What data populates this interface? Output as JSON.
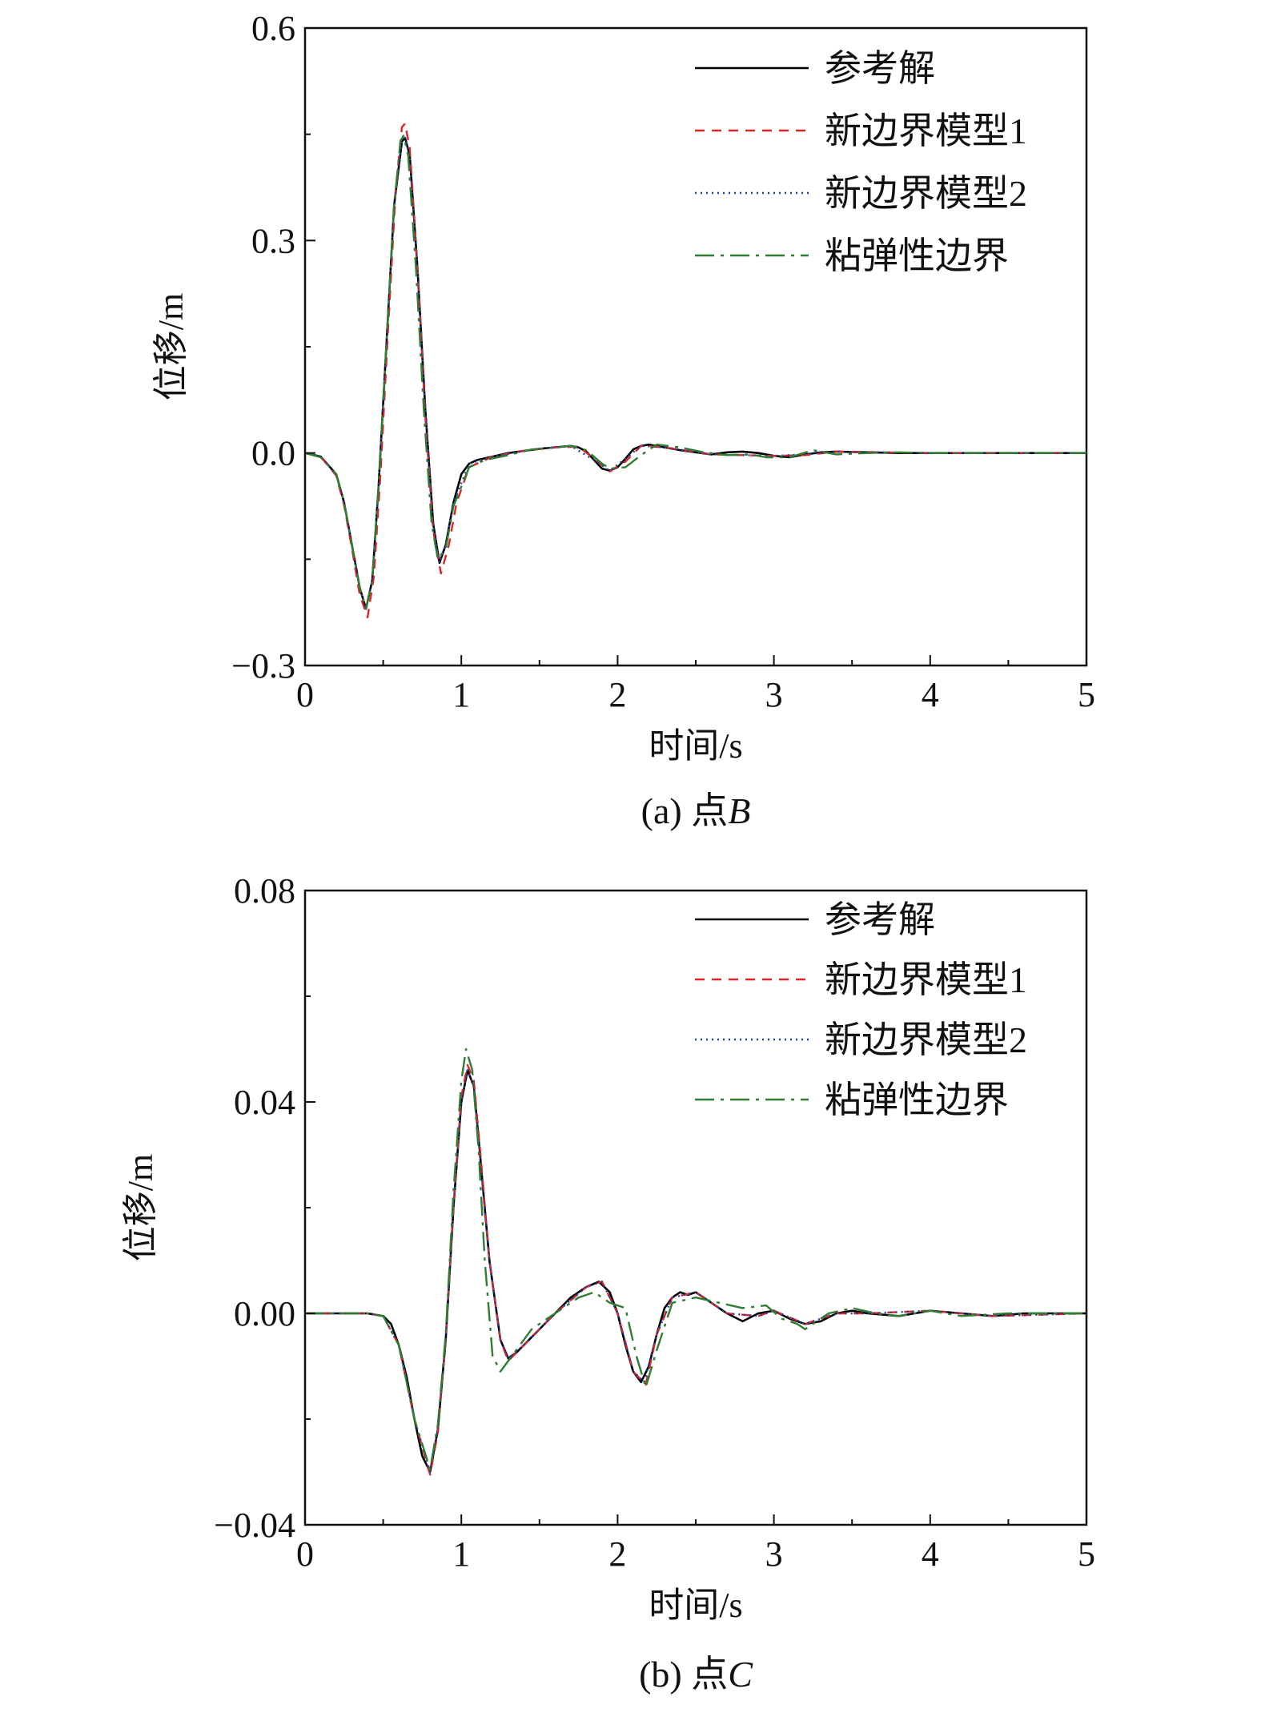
{
  "chart_data": [
    {
      "type": "line",
      "panel_caption": "(a) 点",
      "panel_point": "B",
      "xlabel": "时间/s",
      "ylabel": "位移/m",
      "xlim": [
        0,
        5
      ],
      "ylim": [
        -0.3,
        0.6
      ],
      "xticks": [
        0,
        1,
        2,
        3,
        4,
        5
      ],
      "yticks": [
        -0.3,
        0.0,
        0.3,
        0.6
      ],
      "ytick_labels": [
        "−0.3",
        "0.0",
        "0.3",
        "0.6"
      ],
      "grid": false,
      "legend_position": "top-right",
      "series": [
        {
          "name": "参考解",
          "color": "#000000",
          "dash": "solid",
          "x": [
            0,
            0.1,
            0.2,
            0.25,
            0.3,
            0.35,
            0.39,
            0.43,
            0.47,
            0.52,
            0.57,
            0.62,
            0.64,
            0.67,
            0.72,
            0.77,
            0.82,
            0.86,
            0.9,
            0.95,
            1.0,
            1.05,
            1.1,
            1.2,
            1.3,
            1.4,
            1.5,
            1.6,
            1.7,
            1.75,
            1.8,
            1.85,
            1.9,
            1.95,
            2.0,
            2.05,
            2.1,
            2.15,
            2.2,
            2.3,
            2.4,
            2.5,
            2.6,
            2.7,
            2.8,
            2.9,
            3.0,
            3.1,
            3.2,
            3.3,
            3.4,
            3.6,
            3.8,
            4.0,
            4.5,
            5.0
          ],
          "y": [
            0,
            -0.005,
            -0.03,
            -0.07,
            -0.13,
            -0.19,
            -0.22,
            -0.18,
            -0.05,
            0.15,
            0.35,
            0.44,
            0.445,
            0.42,
            0.26,
            0.06,
            -0.1,
            -0.155,
            -0.13,
            -0.07,
            -0.03,
            -0.015,
            -0.01,
            -0.005,
            0,
            0.003,
            0.006,
            0.008,
            0.01,
            0.008,
            0.002,
            -0.01,
            -0.022,
            -0.025,
            -0.02,
            -0.008,
            0.005,
            0.01,
            0.012,
            0.008,
            0.004,
            0.001,
            -0.002,
            0.001,
            0.002,
            0,
            -0.004,
            -0.006,
            -0.002,
            0.001,
            0.002,
            0.001,
            0,
            0,
            0,
            0
          ]
        },
        {
          "name": "新边界模型1",
          "color": "#d62728",
          "dash": "dashed",
          "x": [
            0,
            0.1,
            0.2,
            0.25,
            0.3,
            0.35,
            0.4,
            0.44,
            0.48,
            0.53,
            0.58,
            0.62,
            0.64,
            0.67,
            0.72,
            0.77,
            0.82,
            0.87,
            0.92,
            0.97,
            1.05,
            1.2,
            1.4,
            1.6,
            1.75,
            1.85,
            1.95,
            2.05,
            2.15,
            2.3,
            2.6,
            3.0,
            3.2,
            3.4,
            4.0,
            5.0
          ],
          "y": [
            0,
            -0.005,
            -0.032,
            -0.074,
            -0.135,
            -0.2,
            -0.232,
            -0.175,
            -0.04,
            0.17,
            0.37,
            0.46,
            0.465,
            0.43,
            0.26,
            0.05,
            -0.11,
            -0.17,
            -0.13,
            -0.07,
            -0.02,
            -0.005,
            0.003,
            0.008,
            0.009,
            -0.008,
            -0.026,
            -0.012,
            0.01,
            0.008,
            -0.002,
            -0.004,
            -0.003,
            0.002,
            0,
            0
          ]
        },
        {
          "name": "新边界模型2",
          "color": "#1f3fa8",
          "dash": "dotted",
          "x": [
            0,
            0.1,
            0.2,
            0.25,
            0.3,
            0.35,
            0.39,
            0.43,
            0.47,
            0.52,
            0.57,
            0.62,
            0.64,
            0.67,
            0.72,
            0.77,
            0.82,
            0.86,
            0.9,
            0.95,
            1.05,
            1.2,
            1.4,
            1.6,
            1.7,
            1.85,
            1.95,
            2.05,
            2.15,
            2.3,
            2.6,
            3.0,
            3.2,
            3.4,
            4.0,
            5.0
          ],
          "y": [
            0,
            -0.005,
            -0.03,
            -0.07,
            -0.13,
            -0.19,
            -0.22,
            -0.18,
            -0.05,
            0.15,
            0.35,
            0.44,
            0.445,
            0.42,
            0.26,
            0.06,
            -0.1,
            -0.155,
            -0.13,
            -0.07,
            -0.015,
            -0.005,
            0.003,
            0.008,
            0.01,
            -0.01,
            -0.025,
            -0.008,
            0.01,
            0.008,
            -0.002,
            -0.004,
            -0.002,
            0.002,
            0,
            0
          ]
        },
        {
          "name": "粘弹性边界",
          "color": "#2e7d32",
          "dash": "dashdot",
          "x": [
            0,
            0.1,
            0.2,
            0.25,
            0.3,
            0.35,
            0.39,
            0.43,
            0.47,
            0.52,
            0.57,
            0.61,
            0.63,
            0.66,
            0.71,
            0.76,
            0.81,
            0.85,
            0.9,
            0.95,
            1.05,
            1.15,
            1.3,
            1.45,
            1.6,
            1.7,
            1.8,
            1.9,
            1.95,
            2.05,
            2.15,
            2.25,
            2.4,
            2.55,
            2.7,
            2.85,
            2.95,
            3.1,
            3.25,
            3.4,
            3.6,
            3.8,
            4.0,
            5.0
          ],
          "y": [
            0,
            -0.006,
            -0.03,
            -0.07,
            -0.13,
            -0.19,
            -0.22,
            -0.18,
            -0.05,
            0.15,
            0.35,
            0.44,
            0.448,
            0.42,
            0.26,
            0.06,
            -0.1,
            -0.15,
            -0.135,
            -0.075,
            -0.02,
            -0.01,
            -0.003,
            0.005,
            0.008,
            0.01,
            0.004,
            -0.015,
            -0.022,
            -0.02,
            -0.003,
            0.012,
            0.008,
            0.001,
            -0.003,
            -0.002,
            -0.006,
            -0.006,
            0.004,
            -0.002,
            0,
            0.001,
            0,
            0
          ]
        }
      ]
    },
    {
      "type": "line",
      "panel_caption": "(b) 点",
      "panel_point": "C",
      "xlabel": "时间/s",
      "ylabel": "位移/m",
      "xlim": [
        0,
        5
      ],
      "ylim": [
        -0.04,
        0.08
      ],
      "xticks": [
        0,
        1,
        2,
        3,
        4,
        5
      ],
      "yticks": [
        -0.04,
        0.0,
        0.04,
        0.08
      ],
      "ytick_labels": [
        "−0.04",
        "0.00",
        "0.04",
        "0.08"
      ],
      "grid": false,
      "legend_position": "top-right",
      "series": [
        {
          "name": "参考解",
          "color": "#000000",
          "dash": "solid",
          "x": [
            0,
            0.4,
            0.5,
            0.55,
            0.6,
            0.65,
            0.7,
            0.75,
            0.8,
            0.85,
            0.9,
            0.95,
            1.0,
            1.04,
            1.08,
            1.12,
            1.18,
            1.25,
            1.3,
            1.35,
            1.4,
            1.5,
            1.6,
            1.7,
            1.8,
            1.88,
            1.95,
            2.0,
            2.05,
            2.1,
            2.15,
            2.2,
            2.25,
            2.3,
            2.35,
            2.4,
            2.45,
            2.5,
            2.55,
            2.6,
            2.7,
            2.8,
            2.9,
            3.0,
            3.1,
            3.2,
            3.3,
            3.4,
            3.5,
            3.6,
            3.8,
            4.0,
            4.2,
            4.4,
            4.6,
            5.0
          ],
          "y": [
            0,
            0,
            -0.0005,
            -0.002,
            -0.006,
            -0.012,
            -0.02,
            -0.027,
            -0.03,
            -0.022,
            -0.005,
            0.02,
            0.04,
            0.046,
            0.043,
            0.03,
            0.01,
            -0.005,
            -0.0085,
            -0.0075,
            -0.006,
            -0.003,
            0,
            0.003,
            0.005,
            0.006,
            0.004,
            0,
            -0.006,
            -0.011,
            -0.013,
            -0.01,
            -0.004,
            0.001,
            0.003,
            0.004,
            0.0035,
            0.004,
            0.003,
            0.002,
            0,
            -0.0015,
            0,
            0.0005,
            -0.001,
            -0.002,
            -0.0015,
            0,
            0.0005,
            0,
            -0.0005,
            0.0005,
            0,
            -0.0005,
            0,
            0
          ]
        },
        {
          "name": "新边界模型1",
          "color": "#d62728",
          "dash": "dashed",
          "x": [
            0,
            0.4,
            0.5,
            0.6,
            0.7,
            0.8,
            0.85,
            0.9,
            0.95,
            1.0,
            1.04,
            1.08,
            1.12,
            1.18,
            1.25,
            1.3,
            1.4,
            1.6,
            1.8,
            1.9,
            2.0,
            2.1,
            2.18,
            2.25,
            2.35,
            2.5,
            2.7,
            2.9,
            3.0,
            3.2,
            3.4,
            3.6,
            4.0,
            4.4,
            5.0
          ],
          "y": [
            0,
            0,
            -0.0005,
            -0.006,
            -0.02,
            -0.0305,
            -0.0225,
            -0.005,
            0.02,
            0.041,
            0.047,
            0.044,
            0.031,
            0.01,
            -0.005,
            -0.009,
            -0.006,
            0,
            0.005,
            0.006,
            0,
            -0.011,
            -0.0135,
            -0.004,
            0.003,
            0.004,
            0,
            -0.0005,
            0.0005,
            -0.002,
            0,
            0,
            0.0005,
            -0.0005,
            0
          ]
        },
        {
          "name": "新边界模型2",
          "color": "#1f3fa8",
          "dash": "dotted",
          "x": [
            0,
            0.4,
            0.5,
            0.6,
            0.7,
            0.8,
            0.85,
            0.9,
            0.95,
            1.0,
            1.04,
            1.08,
            1.12,
            1.18,
            1.25,
            1.3,
            1.4,
            1.6,
            1.8,
            1.9,
            2.0,
            2.1,
            2.17,
            2.25,
            2.35,
            2.5,
            2.7,
            2.9,
            3.0,
            3.2,
            3.4,
            3.6,
            4.0,
            4.4,
            5.0
          ],
          "y": [
            0,
            0,
            -0.0005,
            -0.006,
            -0.02,
            -0.03,
            -0.022,
            -0.005,
            0.02,
            0.04,
            0.046,
            0.043,
            0.03,
            0.01,
            -0.005,
            -0.0085,
            -0.006,
            0,
            0.005,
            0.006,
            0,
            -0.011,
            -0.013,
            -0.004,
            0.003,
            0.004,
            0,
            -0.0005,
            0.0005,
            -0.002,
            0,
            0,
            0.0005,
            -0.0005,
            0
          ]
        },
        {
          "name": "粘弹性边界",
          "color": "#2e7d32",
          "dash": "dashdot",
          "x": [
            0,
            0.4,
            0.5,
            0.6,
            0.7,
            0.8,
            0.85,
            0.9,
            0.95,
            1.0,
            1.03,
            1.07,
            1.11,
            1.15,
            1.2,
            1.25,
            1.3,
            1.45,
            1.6,
            1.75,
            1.85,
            1.95,
            2.05,
            2.12,
            2.18,
            2.25,
            2.35,
            2.5,
            2.65,
            2.8,
            2.95,
            3.05,
            3.15,
            3.2,
            3.35,
            3.5,
            3.65,
            3.8,
            4.0,
            4.2,
            4.5,
            5.0
          ],
          "y": [
            0,
            0,
            -0.0005,
            -0.006,
            -0.02,
            -0.0295,
            -0.021,
            -0.004,
            0.023,
            0.044,
            0.05,
            0.046,
            0.031,
            0.01,
            -0.008,
            -0.011,
            -0.009,
            -0.003,
            0.0,
            0.003,
            0.004,
            0.002,
            0.001,
            -0.008,
            -0.014,
            -0.007,
            0.002,
            0.003,
            0.002,
            0.001,
            0.0015,
            -0.001,
            -0.002,
            -0.003,
            0.0,
            0.001,
            0.0,
            -0.0005,
            0.0005,
            -0.0005,
            0.0,
            0
          ]
        }
      ]
    }
  ]
}
